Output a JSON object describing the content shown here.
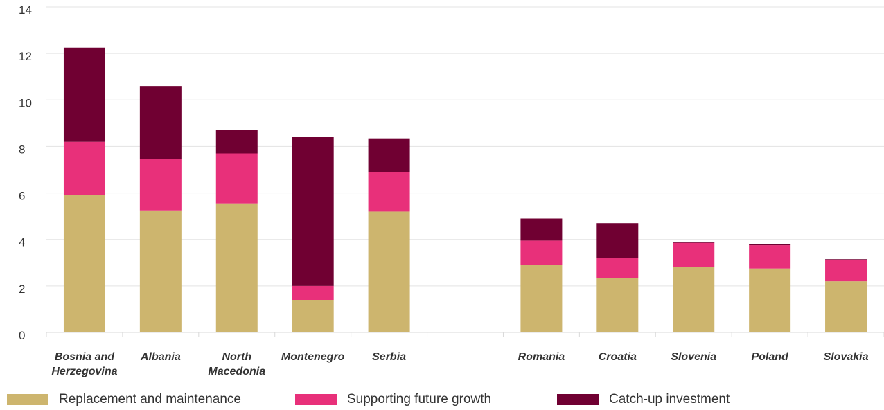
{
  "chart_data": {
    "type": "bar",
    "stacked": true,
    "categories": [
      "Bosnia and Herzegovina",
      "Albania",
      "North Macedonia",
      "Montenegro",
      "Serbia",
      "",
      "Romania",
      "Croatia",
      "Slovenia",
      "Poland",
      "Slovakia"
    ],
    "category_lines": [
      [
        "Bosnia and",
        "Herzegovina"
      ],
      [
        "Albania"
      ],
      [
        "North",
        "Macedonia"
      ],
      [
        "Montenegro"
      ],
      [
        "Serbia"
      ],
      [],
      [
        "Romania"
      ],
      [
        "Croatia"
      ],
      [
        "Slovenia"
      ],
      [
        "Poland"
      ],
      [
        "Slovakia"
      ]
    ],
    "series": [
      {
        "name": "Replacement and maintenance",
        "color": "#cdb56e",
        "values": [
          5.9,
          5.25,
          5.55,
          1.4,
          5.2,
          null,
          2.9,
          2.35,
          2.8,
          2.75,
          2.2
        ]
      },
      {
        "name": "Supporting future growth",
        "color": "#e8307a",
        "values": [
          2.3,
          2.2,
          2.15,
          0.6,
          1.7,
          null,
          1.05,
          0.85,
          1.05,
          1.0,
          0.9
        ]
      },
      {
        "name": "Catch-up investment",
        "color": "#700032",
        "values": [
          4.05,
          3.15,
          1.0,
          6.4,
          1.45,
          null,
          0.95,
          1.5,
          0.05,
          0.05,
          0.05
        ]
      }
    ],
    "ylim": [
      0,
      14
    ],
    "yticks": [
      "0",
      "2",
      "4",
      "6",
      "8",
      "10",
      "12",
      "14"
    ],
    "grid": true,
    "legend_position": "bottom"
  }
}
